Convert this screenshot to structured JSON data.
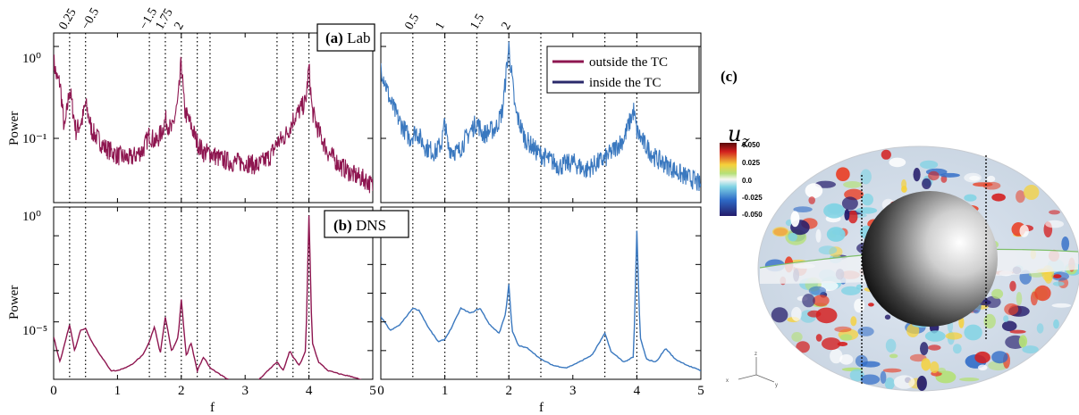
{
  "colors": {
    "outside": "#8e1650",
    "inside": "#3a78bf",
    "legend_inside": "#2b2a6b"
  },
  "panel_labels": {
    "a_bold": "(a)",
    "a_text": "Lab",
    "b_bold": "(b)",
    "b_text": "DNS",
    "c": "(c)"
  },
  "legend": {
    "outside": "outside the TC",
    "inside": "inside the TC"
  },
  "ylabel": "Power",
  "xlabel": "f",
  "colorbar": {
    "title": "u",
    "subscript": "z",
    "ticks": [
      "0.050",
      "0.025",
      "0.0",
      "-0.025",
      "-0.050"
    ]
  },
  "axes_glyphs": {
    "x": "x",
    "y": "y",
    "z": "z"
  },
  "chart_data": [
    {
      "type": "line",
      "panel": "(a) Lab — outside the TC",
      "yscale": "log",
      "xlim": [
        0,
        5
      ],
      "ylim": [
        0.02,
        1.4
      ],
      "yticklabels": [
        "10⁰",
        "10⁻¹"
      ],
      "xticklabels": [
        "0",
        "1",
        "2",
        "3",
        "4",
        "5"
      ],
      "xlabel": "",
      "ylabel": "Power",
      "series": [
        {
          "name": "outside the TC",
          "x": [
            0,
            0.05,
            0.1,
            0.17,
            0.25,
            0.35,
            0.45,
            0.5,
            0.6,
            0.8,
            1.0,
            1.2,
            1.4,
            1.5,
            1.6,
            1.7,
            1.75,
            1.85,
            1.95,
            2.0,
            2.05,
            2.15,
            2.25,
            2.35,
            2.45,
            2.6,
            2.8,
            3.0,
            3.2,
            3.4,
            3.5,
            3.6,
            3.7,
            3.75,
            3.85,
            3.95,
            4.0,
            4.05,
            4.15,
            4.3,
            4.5,
            4.7,
            4.9,
            5.0
          ],
          "y": [
            0.7,
            0.45,
            0.4,
            0.12,
            0.35,
            0.12,
            0.16,
            0.24,
            0.12,
            0.08,
            0.065,
            0.06,
            0.075,
            0.11,
            0.09,
            0.12,
            0.16,
            0.12,
            0.25,
            0.7,
            0.2,
            0.14,
            0.09,
            0.07,
            0.07,
            0.06,
            0.055,
            0.055,
            0.05,
            0.065,
            0.09,
            0.1,
            0.13,
            0.16,
            0.2,
            0.25,
            0.6,
            0.2,
            0.12,
            0.07,
            0.05,
            0.04,
            0.035,
            0.03
          ]
        }
      ]
    },
    {
      "type": "line",
      "panel": "(a) Lab — inside the TC",
      "yscale": "log",
      "xlim": [
        0,
        5
      ],
      "ylim": [
        0.02,
        1.4
      ],
      "xticklabels": [
        "0",
        "1",
        "2",
        "3",
        "4",
        "5"
      ],
      "series": [
        {
          "name": "inside the TC",
          "x": [
            0,
            0.05,
            0.15,
            0.3,
            0.45,
            0.55,
            0.7,
            0.85,
            0.95,
            1.0,
            1.05,
            1.2,
            1.4,
            1.5,
            1.6,
            1.8,
            1.9,
            2.0,
            2.1,
            2.25,
            2.45,
            2.6,
            2.8,
            3.0,
            3.2,
            3.4,
            3.5,
            3.6,
            3.8,
            3.95,
            4.0,
            4.1,
            4.3,
            4.5,
            4.7,
            4.9,
            5.0
          ],
          "y": [
            0.6,
            0.45,
            0.25,
            0.15,
            0.1,
            0.12,
            0.08,
            0.07,
            0.09,
            0.15,
            0.08,
            0.07,
            0.12,
            0.15,
            0.11,
            0.13,
            0.2,
            1.0,
            0.2,
            0.1,
            0.07,
            0.06,
            0.05,
            0.055,
            0.045,
            0.055,
            0.06,
            0.07,
            0.1,
            0.2,
            0.12,
            0.09,
            0.06,
            0.05,
            0.04,
            0.035,
            0.03
          ]
        }
      ]
    },
    {
      "type": "line",
      "panel": "(b) DNS — outside the TC",
      "yscale": "log",
      "xlim": [
        0,
        5
      ],
      "ylim": [
        1e-06,
        1
      ],
      "yticklabels": [
        "10⁰",
        "10⁻⁵"
      ],
      "xticklabels": [
        "0",
        "1",
        "2",
        "3",
        "4",
        "5"
      ],
      "xlabel": "f",
      "ylabel": "Power",
      "series": [
        {
          "name": "outside the TC",
          "x": [
            0,
            0.1,
            0.2,
            0.25,
            0.33,
            0.42,
            0.5,
            0.6,
            0.75,
            0.9,
            1.0,
            1.2,
            1.4,
            1.5,
            1.58,
            1.67,
            1.75,
            1.85,
            1.95,
            2.0,
            2.08,
            2.15,
            2.25,
            2.35,
            2.45,
            2.6,
            2.8,
            3.0,
            3.2,
            3.4,
            3.5,
            3.6,
            3.7,
            3.75,
            3.85,
            3.95,
            4.0,
            4.05,
            4.15,
            4.3,
            4.5,
            4.7,
            4.9,
            5.0
          ],
          "y": [
            3e-05,
            4e-06,
            3e-05,
            8e-05,
            1e-05,
            5e-05,
            6e-05,
            2e-05,
            6e-06,
            2e-06,
            2e-06,
            3e-06,
            7e-06,
            2e-05,
            7e-05,
            8e-06,
            0.00015,
            9e-06,
            3e-05,
            0.0006,
            6e-06,
            2e-05,
            2e-06,
            6e-06,
            2.5e-06,
            1.5e-06,
            8e-07,
            5e-07,
            9e-07,
            2.5e-06,
            4e-06,
            2e-06,
            1e-05,
            6e-06,
            3e-06,
            1e-05,
            0.5,
            2e-05,
            4e-06,
            2e-06,
            1.5e-06,
            1.2e-06,
            8e-07,
            1e-06
          ]
        }
      ]
    },
    {
      "type": "line",
      "panel": "(b) DNS — inside the TC",
      "yscale": "log",
      "xlim": [
        0,
        5
      ],
      "ylim": [
        1e-06,
        1
      ],
      "xticklabels": [
        "0",
        "1",
        "2",
        "3",
        "4",
        "5"
      ],
      "xlabel": "f",
      "series": [
        {
          "name": "inside the TC",
          "x": [
            0,
            0.15,
            0.3,
            0.5,
            0.6,
            0.75,
            0.9,
            1.0,
            1.1,
            1.25,
            1.4,
            1.55,
            1.7,
            1.85,
            1.95,
            2.0,
            2.05,
            2.15,
            2.3,
            2.5,
            2.7,
            2.9,
            3.1,
            3.3,
            3.5,
            3.6,
            3.8,
            3.95,
            4.0,
            4.05,
            4.15,
            4.3,
            4.45,
            4.6,
            4.8,
            5.0
          ],
          "y": [
            0.00015,
            5e-05,
            8e-05,
            0.0003,
            0.00025,
            6e-05,
            2e-05,
            2.5e-05,
            6e-05,
            0.0003,
            0.0002,
            0.0003,
            8e-05,
            4e-05,
            0.0002,
            0.002,
            5e-05,
            1.5e-05,
            1.2e-05,
            5e-06,
            3e-06,
            2.5e-06,
            4e-06,
            7e-06,
            4e-05,
            9e-06,
            4e-06,
            6e-06,
            0.15,
            3e-05,
            5e-06,
            4e-06,
            1.2e-05,
            5e-06,
            3e-06,
            2e-06
          ]
        }
      ]
    }
  ],
  "frequency_markers_left": [
    "0.25",
    "−0.5",
    "−1.5",
    "1.75",
    "2"
  ],
  "frequency_markers_right": [
    "0.5",
    "1",
    "1.5",
    "2"
  ],
  "dotted_lines_left": [
    0.25,
    0.5,
    1.5,
    1.75,
    2.0,
    2.25,
    2.45,
    3.5,
    3.75,
    4.0
  ],
  "dotted_lines_right": [
    0.5,
    1.0,
    1.5,
    2.0,
    2.5,
    3.5,
    4.0
  ]
}
